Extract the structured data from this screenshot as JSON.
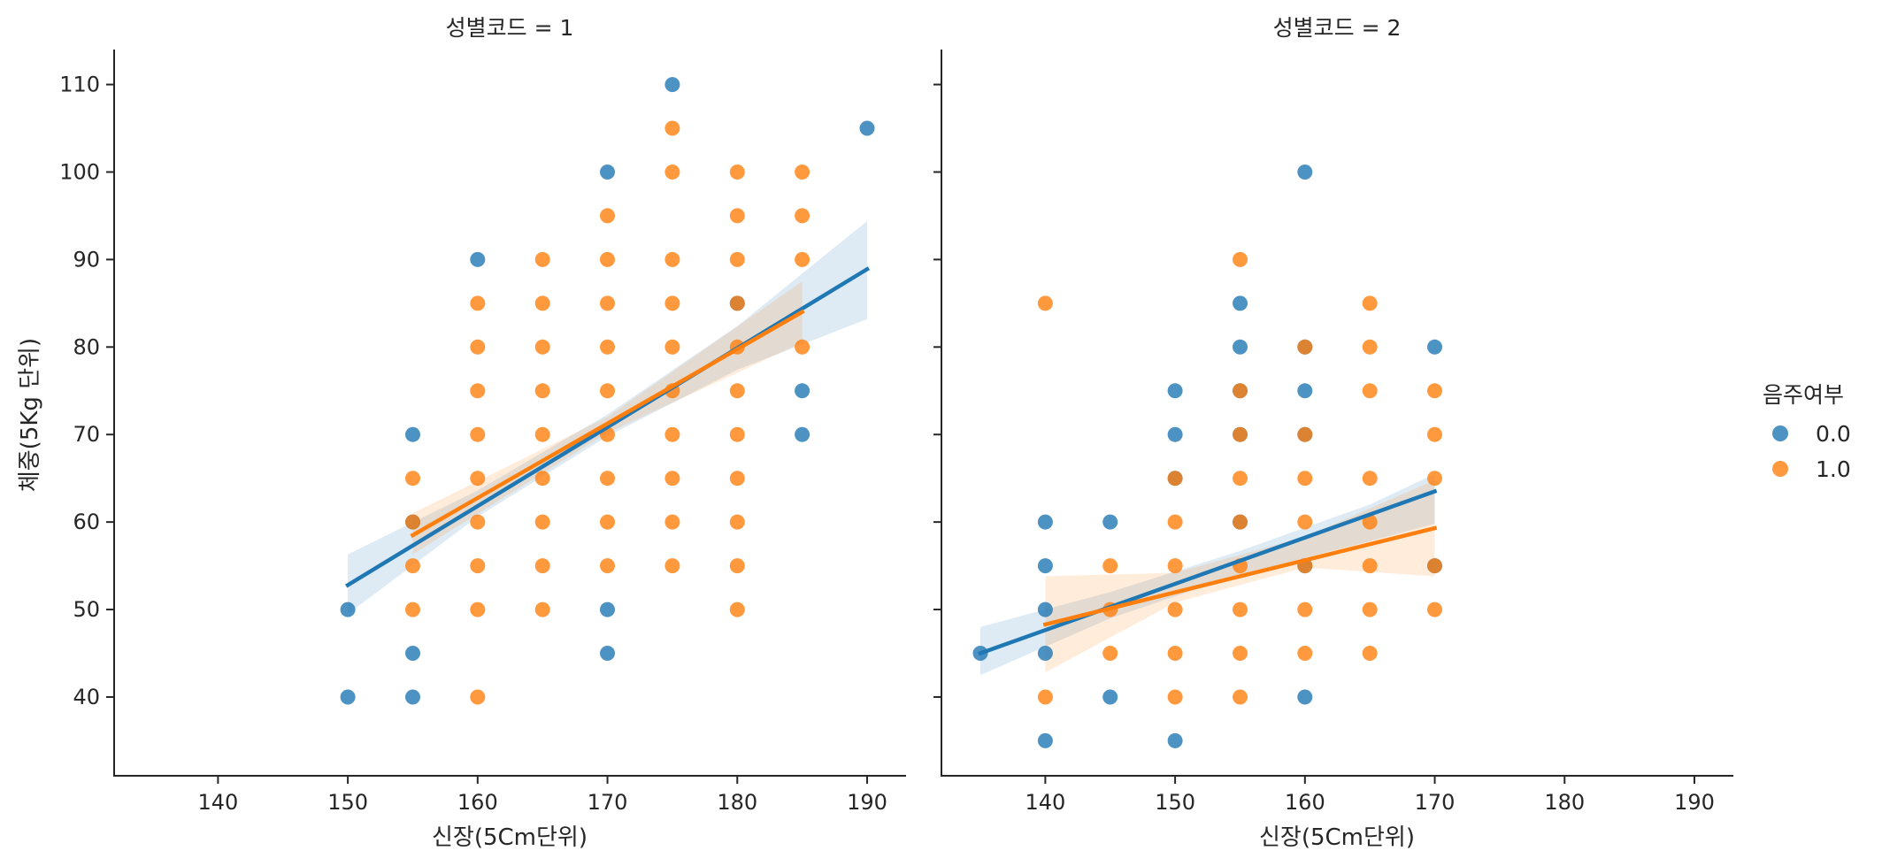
{
  "chart_data": {
    "type": "scatter",
    "figure": "seaborn lmplot faceted by 성별코드, hue 음주여부",
    "shared_ylabel": "체중(5Kg 단위)",
    "x_ticks": [
      140,
      150,
      160,
      170,
      180,
      190
    ],
    "y_ticks": [
      40,
      50,
      60,
      70,
      80,
      90,
      100,
      110
    ],
    "xlim": [
      132,
      193
    ],
    "ylim": [
      31,
      114
    ],
    "legend": {
      "title": "음주여부",
      "placement": "right",
      "entries": [
        {
          "label": "0.0",
          "color": "#1f77b4"
        },
        {
          "label": "1.0",
          "color": "#ff7f0e"
        }
      ]
    },
    "panels": [
      {
        "title": "성별코드 = 1",
        "xlabel": "신장(5Cm단위)",
        "series": [
          {
            "name": "0.0",
            "color": "#1f77b4",
            "points": [
              [
                150,
                40
              ],
              [
                150,
                50
              ],
              [
                155,
                40
              ],
              [
                155,
                45
              ],
              [
                155,
                60
              ],
              [
                155,
                70
              ],
              [
                160,
                90
              ],
              [
                170,
                45
              ],
              [
                170,
                50
              ],
              [
                170,
                100
              ],
              [
                175,
                110
              ],
              [
                180,
                85
              ],
              [
                185,
                70
              ],
              [
                185,
                75
              ],
              [
                190,
                105
              ]
            ],
            "fit": {
              "x": [
                150,
                190
              ],
              "y": [
                52.8,
                88.9
              ]
            },
            "band": {
              "x": [
                150,
                160,
                170,
                180,
                190
              ],
              "lower": [
                49.5,
                60.6,
                69.8,
                77.4,
                83.2
              ],
              "upper": [
                56.3,
                63.6,
                72.3,
                82.4,
                94.4
              ]
            }
          },
          {
            "name": "1.0",
            "color": "#ff7f0e",
            "points": [
              [
                155,
                50
              ],
              [
                155,
                55
              ],
              [
                155,
                60
              ],
              [
                155,
                65
              ],
              [
                160,
                40
              ],
              [
                160,
                50
              ],
              [
                160,
                55
              ],
              [
                160,
                60
              ],
              [
                160,
                65
              ],
              [
                160,
                70
              ],
              [
                160,
                75
              ],
              [
                160,
                80
              ],
              [
                160,
                85
              ],
              [
                165,
                50
              ],
              [
                165,
                55
              ],
              [
                165,
                60
              ],
              [
                165,
                65
              ],
              [
                165,
                70
              ],
              [
                165,
                75
              ],
              [
                165,
                80
              ],
              [
                165,
                85
              ],
              [
                165,
                90
              ],
              [
                170,
                55
              ],
              [
                170,
                60
              ],
              [
                170,
                65
              ],
              [
                170,
                70
              ],
              [
                170,
                75
              ],
              [
                170,
                80
              ],
              [
                170,
                85
              ],
              [
                170,
                90
              ],
              [
                170,
                95
              ],
              [
                175,
                55
              ],
              [
                175,
                60
              ],
              [
                175,
                65
              ],
              [
                175,
                70
              ],
              [
                175,
                75
              ],
              [
                175,
                80
              ],
              [
                175,
                85
              ],
              [
                175,
                90
              ],
              [
                175,
                100
              ],
              [
                175,
                105
              ],
              [
                180,
                50
              ],
              [
                180,
                55
              ],
              [
                180,
                60
              ],
              [
                180,
                65
              ],
              [
                180,
                70
              ],
              [
                180,
                75
              ],
              [
                180,
                80
              ],
              [
                180,
                85
              ],
              [
                180,
                90
              ],
              [
                180,
                95
              ],
              [
                180,
                100
              ],
              [
                185,
                80
              ],
              [
                185,
                90
              ],
              [
                185,
                95
              ],
              [
                185,
                100
              ]
            ],
            "fit": {
              "x": [
                155,
                185
              ],
              "y": [
                58.5,
                84.0
              ]
            },
            "band": {
              "x": [
                155,
                170,
                185
              ],
              "lower": [
                56.3,
                70.2,
                80.5
              ],
              "upper": [
                61.0,
                72.0,
                87.5
              ]
            }
          }
        ]
      },
      {
        "title": "성별코드 = 2",
        "xlabel": "신장(5Cm단위)",
        "series": [
          {
            "name": "0.0",
            "color": "#1f77b4",
            "points": [
              [
                135,
                45
              ],
              [
                140,
                35
              ],
              [
                140,
                45
              ],
              [
                140,
                50
              ],
              [
                140,
                55
              ],
              [
                140,
                60
              ],
              [
                145,
                40
              ],
              [
                145,
                60
              ],
              [
                150,
                35
              ],
              [
                150,
                65
              ],
              [
                150,
                70
              ],
              [
                150,
                75
              ],
              [
                155,
                60
              ],
              [
                155,
                70
              ],
              [
                155,
                75
              ],
              [
                155,
                80
              ],
              [
                155,
                85
              ],
              [
                160,
                40
              ],
              [
                160,
                55
              ],
              [
                160,
                70
              ],
              [
                160,
                75
              ],
              [
                160,
                80
              ],
              [
                160,
                100
              ],
              [
                170,
                55
              ],
              [
                170,
                80
              ]
            ],
            "fit": {
              "x": [
                135,
                170
              ],
              "y": [
                45.0,
                63.5
              ]
            },
            "band": {
              "x": [
                135,
                145,
                155,
                165,
                170
              ],
              "lower": [
                42.5,
                49.0,
                54.0,
                57.8,
                59.8
              ],
              "upper": [
                48.0,
                52.0,
                56.7,
                62.0,
                65.5
              ]
            }
          },
          {
            "name": "1.0",
            "color": "#ff7f0e",
            "points": [
              [
                140,
                40
              ],
              [
                140,
                85
              ],
              [
                145,
                45
              ],
              [
                145,
                50
              ],
              [
                145,
                55
              ],
              [
                150,
                40
              ],
              [
                150,
                45
              ],
              [
                150,
                50
              ],
              [
                150,
                55
              ],
              [
                150,
                60
              ],
              [
                150,
                65
              ],
              [
                155,
                40
              ],
              [
                155,
                45
              ],
              [
                155,
                50
              ],
              [
                155,
                55
              ],
              [
                155,
                60
              ],
              [
                155,
                65
              ],
              [
                155,
                70
              ],
              [
                155,
                75
              ],
              [
                155,
                90
              ],
              [
                160,
                45
              ],
              [
                160,
                50
              ],
              [
                160,
                55
              ],
              [
                160,
                60
              ],
              [
                160,
                65
              ],
              [
                160,
                70
              ],
              [
                160,
                80
              ],
              [
                165,
                45
              ],
              [
                165,
                50
              ],
              [
                165,
                55
              ],
              [
                165,
                60
              ],
              [
                165,
                65
              ],
              [
                165,
                75
              ],
              [
                165,
                80
              ],
              [
                165,
                85
              ],
              [
                170,
                50
              ],
              [
                170,
                55
              ],
              [
                170,
                65
              ],
              [
                170,
                70
              ],
              [
                170,
                75
              ]
            ],
            "fit": {
              "x": [
                140,
                170
              ],
              "y": [
                48.3,
                59.3
              ]
            },
            "band": {
              "x": [
                140,
                150,
                160,
                170
              ],
              "lower": [
                42.8,
                50.8,
                54.8,
                53.8
              ],
              "upper": [
                53.8,
                54.2,
                58.3,
                64.8
              ]
            }
          }
        ]
      }
    ]
  }
}
